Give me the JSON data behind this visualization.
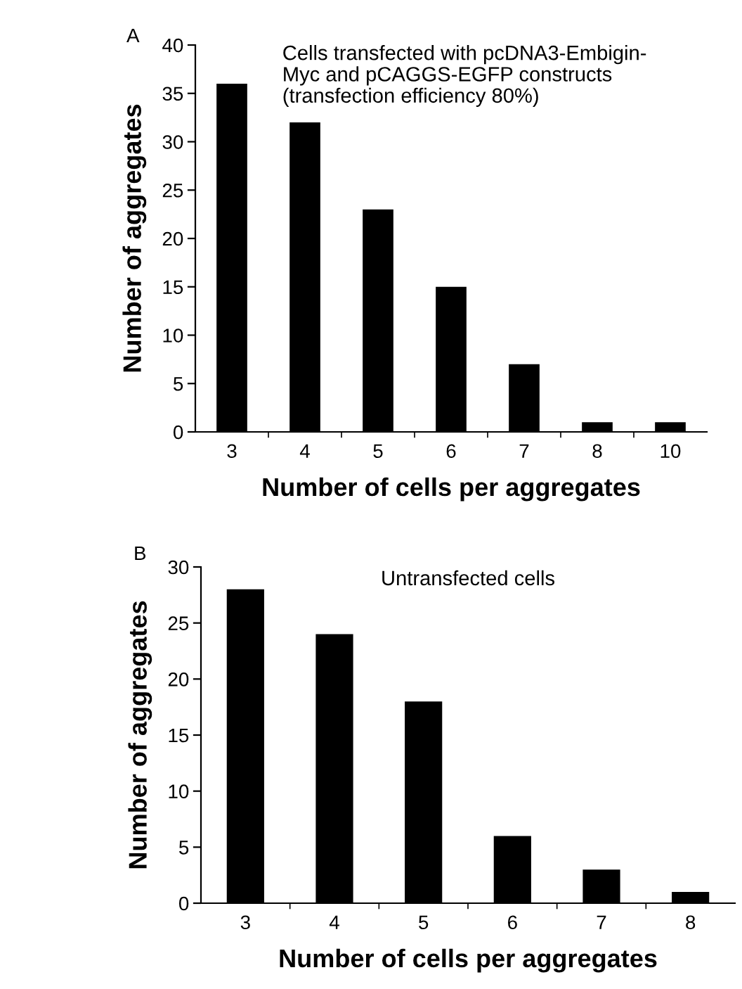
{
  "chart_data": [
    {
      "type": "bar",
      "title": "A",
      "annotations": [
        "Cells transfected with pcDNA3-Embigin-\nMyc and pCAGGS-EGFP constructs\n(transfection efficiency 80%)"
      ],
      "xlabel": "Number of cells per aggregates",
      "ylabel": "Number of aggregates",
      "categories": [
        "3",
        "4",
        "5",
        "6",
        "7",
        "8",
        "10"
      ],
      "values": [
        36,
        32,
        23,
        15,
        7,
        1,
        1
      ],
      "color": "#000000",
      "ylim": [
        0,
        40
      ],
      "yticks": [
        0,
        5,
        10,
        15,
        20,
        25,
        30,
        35,
        40
      ],
      "grid": false,
      "legend": false
    },
    {
      "type": "bar",
      "title": "B",
      "annotations": [
        "Untransfected cells"
      ],
      "xlabel": "Number of cells per aggregates",
      "ylabel": "Number of aggregates",
      "categories": [
        "3",
        "4",
        "5",
        "6",
        "7",
        "8"
      ],
      "values": [
        28,
        24,
        18,
        6,
        3,
        1
      ],
      "color": "#000000",
      "ylim": [
        0,
        30
      ],
      "yticks": [
        0,
        5,
        10,
        15,
        20,
        25,
        30
      ],
      "grid": false,
      "legend": false
    }
  ]
}
